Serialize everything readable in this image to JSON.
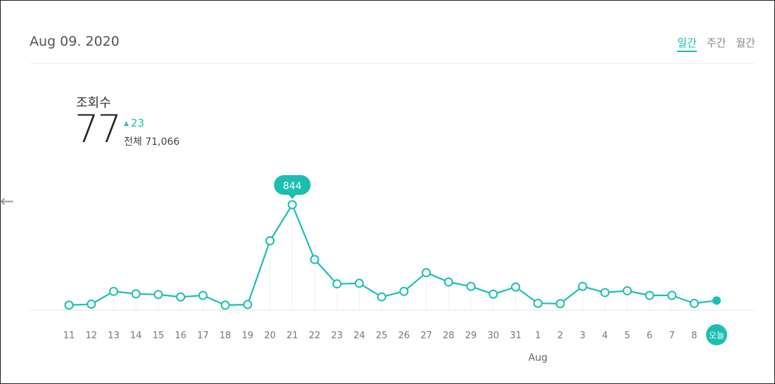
{
  "header": {
    "date": "Aug 09. 2020",
    "tabs": [
      {
        "label": "일간",
        "active": true
      },
      {
        "label": "주간",
        "active": false
      },
      {
        "label": "월간",
        "active": false
      }
    ]
  },
  "metric": {
    "label": "조회수",
    "value": "77",
    "delta": "23",
    "total": "전체 71,066"
  },
  "nav": {
    "prev_icon": "left-arrow-icon"
  },
  "colors": {
    "accent": "#1bbfb0",
    "axis": "#e6e6e6",
    "tick": "#777777"
  },
  "chart_data": {
    "type": "line",
    "x": [
      "11",
      "12",
      "13",
      "14",
      "15",
      "16",
      "17",
      "18",
      "19",
      "20",
      "21",
      "22",
      "23",
      "24",
      "25",
      "26",
      "27",
      "28",
      "29",
      "30",
      "31",
      "1",
      "2",
      "3",
      "4",
      "5",
      "6",
      "7",
      "8",
      "오늘"
    ],
    "values": [
      40,
      48,
      150,
      130,
      125,
      105,
      118,
      40,
      45,
      555,
      844,
      405,
      210,
      215,
      106,
      150,
      300,
      225,
      190,
      128,
      185,
      55,
      52,
      190,
      141,
      155,
      118,
      118,
      54,
      77
    ],
    "highlight_label": "844",
    "month_label": "Aug",
    "ylim": [
      0,
      844
    ]
  }
}
